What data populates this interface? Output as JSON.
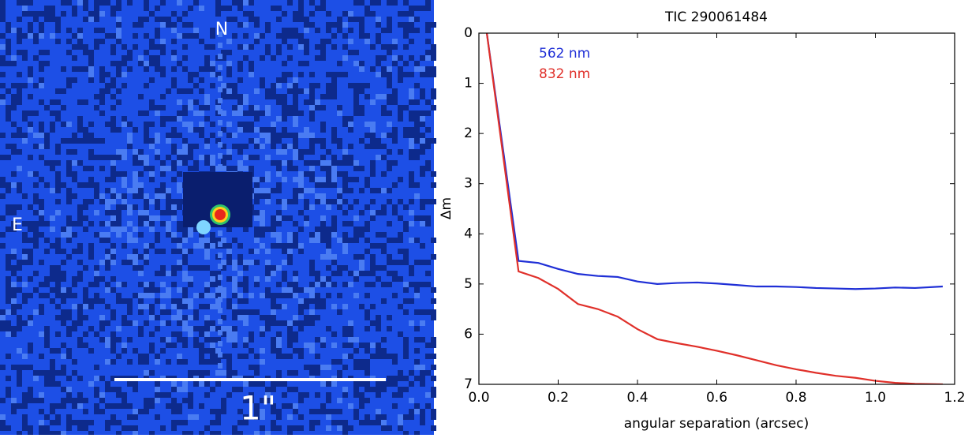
{
  "image": {
    "north_label": "N",
    "east_label": "E",
    "scale_label": "1\""
  },
  "chart_data": {
    "type": "line",
    "title": "TIC 290061484",
    "x_label": "angular separation (arcsec)",
    "y_label": "Δm",
    "x": [
      0.02,
      0.1,
      0.15,
      0.2,
      0.25,
      0.3,
      0.35,
      0.4,
      0.45,
      0.5,
      0.55,
      0.6,
      0.65,
      0.7,
      0.75,
      0.8,
      0.85,
      0.9,
      0.95,
      1.0,
      1.05,
      1.1,
      1.17
    ],
    "series": [
      {
        "name": "562 nm",
        "color": "#1f2fd6",
        "values": [
          0,
          4.54,
          4.58,
          4.7,
          4.8,
          4.84,
          4.86,
          4.95,
          5.0,
          4.98,
          4.97,
          4.99,
          5.02,
          5.05,
          5.05,
          5.06,
          5.08,
          5.09,
          5.1,
          5.09,
          5.07,
          5.08,
          5.05
        ]
      },
      {
        "name": "832 nm",
        "color": "#e0302a",
        "values": [
          0,
          4.75,
          4.88,
          5.1,
          5.4,
          5.5,
          5.65,
          5.9,
          6.1,
          6.18,
          6.25,
          6.33,
          6.42,
          6.52,
          6.62,
          6.7,
          6.77,
          6.83,
          6.87,
          6.93,
          6.97,
          6.99,
          7.0
        ]
      }
    ],
    "xlim": [
      0,
      1.2
    ],
    "xticks": [
      {
        "value": 0,
        "label": "0.0"
      },
      0.2,
      0.4,
      0.6,
      0.8,
      {
        "value": 1,
        "label": "1.0"
      },
      1.2
    ],
    "ylim": [
      0,
      7
    ],
    "yticks": [
      0,
      1,
      2,
      3,
      4,
      5,
      6,
      7
    ],
    "y_inverted": true,
    "legend": "upper left"
  }
}
